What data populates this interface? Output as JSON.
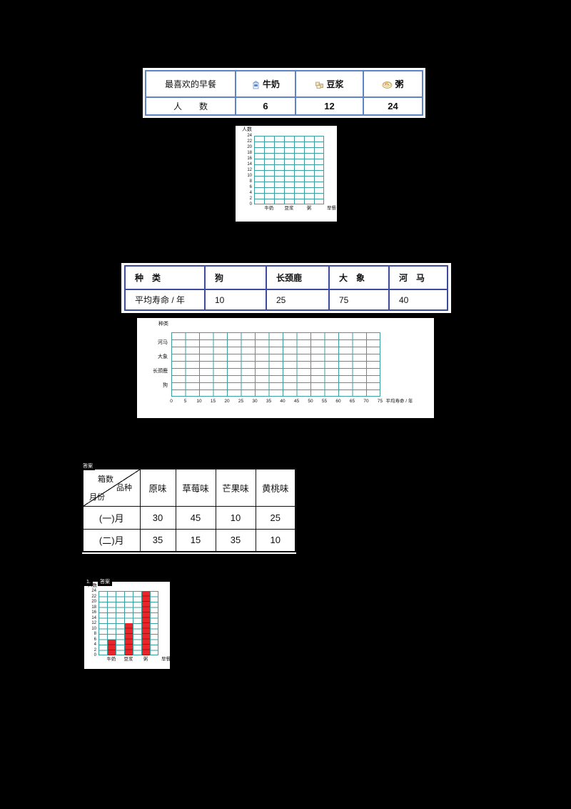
{
  "markers": {
    "tag1": "答案",
    "tag2_num": "1.",
    "tag2": "答案"
  },
  "breakfast_table": {
    "header_label": "最喜欢的早餐",
    "row_label": "人　　数",
    "items": [
      {
        "name": "牛奶",
        "count": "6"
      },
      {
        "name": "豆浆",
        "count": "12"
      },
      {
        "name": "粥",
        "count": "24"
      }
    ]
  },
  "lifespan_table": {
    "header_label": "种　类",
    "row_label": "平均寿命 / 年",
    "items": [
      {
        "name": "狗",
        "value": "10"
      },
      {
        "name": "长颈鹿",
        "value": "25"
      },
      {
        "name": "大　象",
        "value": "75"
      },
      {
        "name": "河　马",
        "value": "40"
      }
    ]
  },
  "flavor_table": {
    "corner": {
      "top_left": "箱数",
      "top_right": "品种",
      "bottom_left": "月份"
    },
    "columns": [
      "原味",
      "草莓味",
      "芒果味",
      "黄桃味"
    ],
    "rows": [
      {
        "label": "(一)月",
        "values": [
          "30",
          "45",
          "10",
          "25"
        ]
      },
      {
        "label": "(二)月",
        "values": [
          "35",
          "15",
          "35",
          "10"
        ]
      }
    ]
  },
  "chart_data": [
    {
      "id": "breakfast-blank",
      "type": "bar",
      "title": "",
      "ylabel": "人数",
      "xlabel": "早餐",
      "categories": [
        "牛奶",
        "豆浆",
        "粥"
      ],
      "values": [],
      "yticks": [
        0,
        2,
        4,
        6,
        8,
        10,
        12,
        14,
        16,
        18,
        20,
        22,
        24
      ],
      "ylim": [
        0,
        24
      ],
      "grid": true,
      "note": "blank grid to be filled in by student"
    },
    {
      "id": "lifespan-blank",
      "type": "bar-horizontal",
      "title": "",
      "ylabel": "种类",
      "xlabel": "平均寿命 / 年",
      "categories_top_to_bottom": [
        "河马",
        "大象",
        "长颈鹿",
        "狗"
      ],
      "values": [],
      "xticks": [
        0,
        5,
        10,
        15,
        20,
        25,
        30,
        35,
        40,
        45,
        50,
        55,
        60,
        65,
        70,
        75
      ],
      "xlim": [
        0,
        75
      ],
      "grid": true,
      "note": "blank grid to be filled in by student"
    },
    {
      "id": "breakfast-filled",
      "type": "bar",
      "title": "",
      "ylabel": "人数",
      "xlabel": "早餐",
      "categories": [
        "牛奶",
        "豆浆",
        "粥"
      ],
      "values": [
        6,
        12,
        24
      ],
      "yticks": [
        0,
        2,
        4,
        6,
        8,
        10,
        12,
        14,
        16,
        18,
        20,
        22,
        24
      ],
      "ylim": [
        0,
        24
      ],
      "grid": true,
      "bar_color": "#e8262a"
    }
  ],
  "colors": {
    "page_bg": "#000000",
    "panel_bg": "#ffffff",
    "grid_teal": "#3aa0a0",
    "breakfast_table_border": "#5f83c4",
    "lifespan_table_border": "#3c4b9e",
    "flavor_table_border": "#111111",
    "bar_red": "#e8262a"
  }
}
